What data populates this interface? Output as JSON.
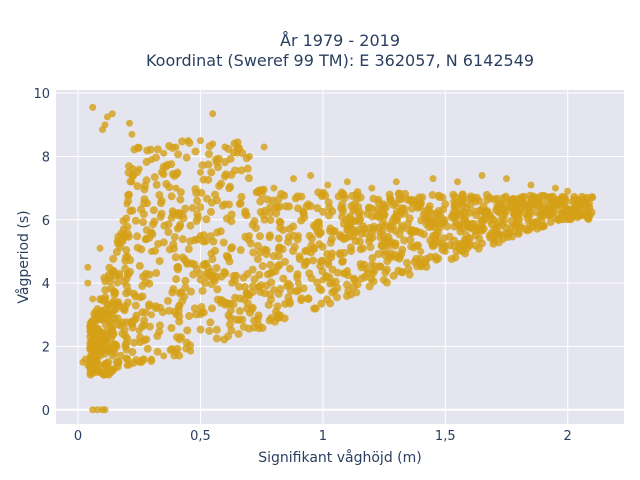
{
  "chart_data": {
    "type": "scatter",
    "title": [
      "År 1979 - 2019",
      "Koordinat (Sweref 99 TM): E 362057, N 6142549"
    ],
    "xlabel": "Signifikant våghöjd (m)",
    "ylabel": "Vågperiod (s)",
    "xlim": [
      -0.09,
      2.23
    ],
    "ylim": [
      -0.45,
      10.1
    ],
    "x_ticks": [
      0,
      0.5,
      1,
      1.5,
      2
    ],
    "x_tick_labels": [
      "0",
      "0,5",
      "1",
      "1,5",
      "2"
    ],
    "y_ticks": [
      0,
      2,
      4,
      6,
      8,
      10
    ],
    "y_tick_labels": [
      "0",
      "2",
      "4",
      "6",
      "8",
      "10"
    ],
    "grid": true,
    "marker_color": "#D4A017",
    "background_color": "#E5E5EF",
    "series": [
      {
        "points": [
          [
            0.06,
            9.55
          ],
          [
            0.12,
            9.25
          ],
          [
            0.1,
            8.85
          ],
          [
            0.14,
            9.35
          ],
          [
            0.21,
            9.05
          ],
          [
            0.11,
            9.0
          ],
          [
            0.55,
            9.35
          ],
          [
            0.22,
            8.7
          ],
          [
            0.06,
            0.0
          ],
          [
            0.08,
            0.0
          ],
          [
            0.1,
            0.0
          ],
          [
            0.11,
            0.0
          ],
          [
            0.02,
            1.5
          ],
          [
            0.03,
            1.6
          ],
          [
            0.04,
            1.4
          ],
          [
            0.04,
            4.5
          ],
          [
            0.04,
            4.0
          ],
          [
            0.09,
            5.1
          ],
          [
            0.06,
            3.5
          ],
          [
            0.08,
            3.0
          ],
          [
            0.07,
            2.5
          ],
          [
            0.08,
            2.0
          ],
          [
            0.05,
            1.3
          ],
          [
            0.09,
            1.2
          ],
          [
            0.12,
            1.25
          ],
          [
            0.15,
            1.3
          ],
          [
            0.2,
            1.4
          ],
          [
            0.25,
            1.5
          ],
          [
            0.3,
            1.6
          ],
          [
            0.35,
            1.7
          ],
          [
            0.4,
            1.8
          ],
          [
            0.46,
            1.85
          ],
          [
            0.12,
            3.0
          ],
          [
            0.14,
            2.6
          ],
          [
            0.16,
            4.0
          ],
          [
            0.18,
            5.5
          ],
          [
            0.2,
            6.5
          ],
          [
            0.22,
            7.2
          ],
          [
            0.25,
            7.6
          ],
          [
            0.3,
            7.9
          ],
          [
            0.35,
            8.1
          ],
          [
            0.4,
            8.3
          ],
          [
            0.45,
            8.5
          ],
          [
            0.5,
            8.5
          ],
          [
            0.55,
            8.4
          ],
          [
            0.6,
            8.3
          ],
          [
            0.65,
            8.1
          ],
          [
            0.7,
            8.0
          ],
          [
            0.76,
            8.3
          ],
          [
            0.88,
            7.3
          ],
          [
            0.95,
            7.4
          ],
          [
            1.02,
            7.1
          ],
          [
            1.1,
            7.2
          ],
          [
            1.2,
            7.0
          ],
          [
            1.3,
            7.2
          ],
          [
            1.45,
            7.3
          ],
          [
            1.55,
            7.2
          ],
          [
            1.65,
            7.4
          ],
          [
            1.75,
            7.3
          ],
          [
            1.85,
            7.1
          ],
          [
            1.95,
            7.0
          ],
          [
            2.0,
            6.9
          ],
          [
            2.05,
            6.6
          ],
          [
            2.1,
            6.7
          ],
          [
            0.25,
            2.5
          ],
          [
            0.3,
            3.0
          ],
          [
            0.4,
            3.0
          ],
          [
            0.5,
            3.0
          ],
          [
            0.6,
            3.3
          ],
          [
            0.7,
            3.6
          ],
          [
            0.8,
            3.8
          ],
          [
            0.9,
            4.0
          ],
          [
            1.0,
            4.1
          ],
          [
            1.1,
            4.4
          ],
          [
            1.2,
            4.6
          ],
          [
            1.3,
            4.8
          ],
          [
            1.4,
            5.0
          ],
          [
            1.5,
            5.0
          ],
          [
            1.6,
            5.2
          ],
          [
            1.7,
            5.4
          ],
          [
            1.8,
            5.6
          ],
          [
            1.9,
            5.8
          ],
          [
            2.0,
            6.0
          ],
          [
            2.05,
            6.2
          ],
          [
            0.3,
            5.0
          ],
          [
            0.5,
            5.5
          ],
          [
            0.7,
            5.5
          ],
          [
            0.9,
            5.5
          ],
          [
            1.1,
            5.8
          ],
          [
            1.3,
            6.0
          ],
          [
            1.5,
            6.0
          ],
          [
            1.7,
            6.0
          ],
          [
            1.9,
            6.1
          ],
          [
            0.6,
            6.5
          ],
          [
            1.0,
            6.8
          ],
          [
            1.4,
            6.5
          ],
          [
            1.8,
            6.5
          ],
          [
            0.4,
            7.0
          ],
          [
            0.5,
            7.5
          ],
          [
            0.8,
            7.0
          ]
        ]
      }
    ]
  }
}
